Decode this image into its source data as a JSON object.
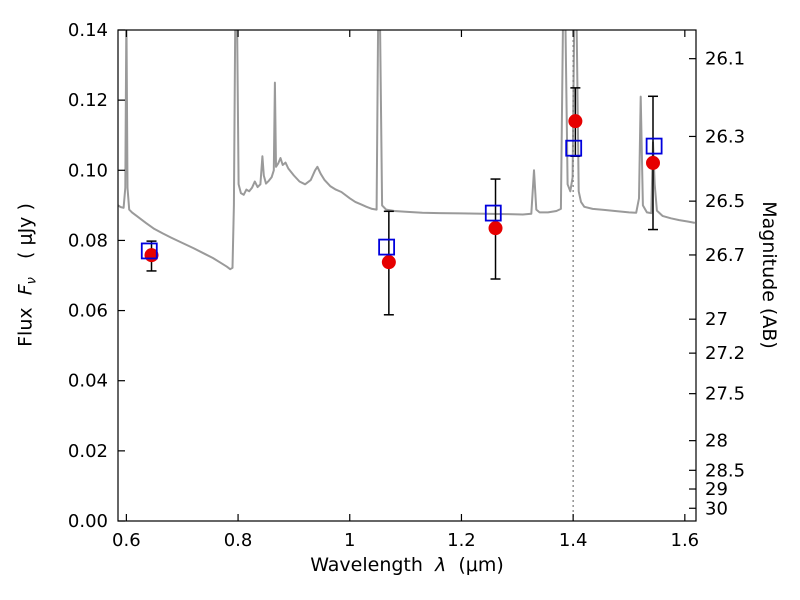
{
  "figure": {
    "xlabel": {
      "text": "Wavelength",
      "symbol": "λ",
      "unit": "(μm)"
    },
    "ylabel_left": {
      "text": "Flux",
      "symbol": "F",
      "sub": "ν",
      "unit": "( μJy )"
    },
    "ylabel_right": "Magnitude (AB)"
  },
  "chart_data": {
    "type": "line",
    "title": "",
    "xlabel": "Wavelength λ (μm)",
    "ylabel": "Flux Fν ( μJy )",
    "ylabel_secondary": "Magnitude (AB)",
    "xlim": [
      0.585,
      1.62
    ],
    "ylim": [
      0.0,
      0.14
    ],
    "grid": false,
    "legend": false,
    "xticks": {
      "values": [
        0.6,
        0.8,
        1.0,
        1.2,
        1.4,
        1.6
      ],
      "labels": [
        "0.6",
        "0.8",
        "1",
        "1.2",
        "1.4",
        "1.6"
      ]
    },
    "yticks_left": {
      "values": [
        0.0,
        0.02,
        0.04,
        0.06,
        0.08,
        0.1,
        0.12,
        0.14
      ],
      "labels": [
        "0.00",
        "0.02",
        "0.04",
        "0.06",
        "0.08",
        "0.10",
        "0.12",
        "0.14"
      ]
    },
    "yticks_right": {
      "magnitudes": [
        26.1,
        26.3,
        26.5,
        26.7,
        27,
        27.2,
        27.5,
        28,
        28.5,
        29,
        30
      ],
      "labels": [
        "26.1",
        "26.3",
        "26.5",
        "26.7",
        "27",
        "27.2",
        "27.5",
        "28",
        "28.5",
        "29",
        "30"
      ],
      "ab_zeropoint_ujy": 23.9
    },
    "vline": {
      "x": 1.4,
      "style": "dotted",
      "color": "#777777"
    },
    "series": [
      {
        "name": "model-spectrum",
        "type": "line",
        "color": "#9a9a9a",
        "x": [
          0.585,
          0.59,
          0.595,
          0.598,
          0.6,
          0.602,
          0.605,
          0.61,
          0.62,
          0.635,
          0.65,
          0.665,
          0.68,
          0.7,
          0.72,
          0.74,
          0.755,
          0.77,
          0.78,
          0.786,
          0.79,
          0.7925,
          0.795,
          0.798,
          0.801,
          0.805,
          0.81,
          0.815,
          0.82,
          0.825,
          0.83,
          0.835,
          0.84,
          0.8435,
          0.846,
          0.85,
          0.855,
          0.86,
          0.864,
          0.866,
          0.868,
          0.872,
          0.876,
          0.88,
          0.885,
          0.89,
          0.9,
          0.91,
          0.92,
          0.93,
          0.938,
          0.942,
          0.948,
          0.955,
          0.965,
          0.975,
          0.985,
          1.0,
          1.01,
          1.02,
          1.03,
          1.04,
          1.048,
          1.051,
          1.054,
          1.058,
          1.065,
          1.08,
          1.1,
          1.13,
          1.16,
          1.2,
          1.24,
          1.28,
          1.31,
          1.325,
          1.33,
          1.334,
          1.34,
          1.355,
          1.37,
          1.378,
          1.382,
          1.386,
          1.39,
          1.395,
          1.399,
          1.402,
          1.406,
          1.41,
          1.414,
          1.42,
          1.435,
          1.455,
          1.475,
          1.5,
          1.513,
          1.518,
          1.521,
          1.525,
          1.532,
          1.54,
          1.543,
          1.546,
          1.55,
          1.56,
          1.575,
          1.59,
          1.605,
          1.618
        ],
        "y": [
          0.09,
          0.0895,
          0.0893,
          0.095,
          0.145,
          0.095,
          0.0888,
          0.088,
          0.0868,
          0.085,
          0.0833,
          0.082,
          0.0808,
          0.0793,
          0.0778,
          0.0762,
          0.075,
          0.0735,
          0.0725,
          0.0718,
          0.0722,
          0.09,
          0.145,
          0.145,
          0.096,
          0.0935,
          0.093,
          0.0945,
          0.094,
          0.095,
          0.0968,
          0.0952,
          0.096,
          0.104,
          0.0985,
          0.0962,
          0.097,
          0.098,
          0.1,
          0.125,
          0.101,
          0.102,
          0.1035,
          0.1015,
          0.1022,
          0.1005,
          0.0985,
          0.0968,
          0.096,
          0.0972,
          0.1,
          0.101,
          0.099,
          0.0972,
          0.0955,
          0.0945,
          0.0938,
          0.092,
          0.091,
          0.0903,
          0.0896,
          0.089,
          0.0888,
          0.145,
          0.145,
          0.09,
          0.0888,
          0.0884,
          0.0882,
          0.0879,
          0.0878,
          0.0877,
          0.0876,
          0.0875,
          0.0874,
          0.0876,
          0.1,
          0.0888,
          0.088,
          0.088,
          0.0884,
          0.089,
          0.145,
          0.145,
          0.096,
          0.094,
          0.098,
          0.145,
          0.145,
          0.094,
          0.091,
          0.0896,
          0.089,
          0.0887,
          0.0884,
          0.088,
          0.0879,
          0.092,
          0.121,
          0.09,
          0.088,
          0.0878,
          0.108,
          0.096,
          0.0885,
          0.087,
          0.0863,
          0.0858,
          0.0854,
          0.085
        ]
      },
      {
        "name": "observed-photometry",
        "type": "scatter",
        "marker": "circle",
        "color": "#e60000",
        "err_color": "#000000",
        "x": [
          0.645,
          1.07,
          1.261,
          1.404,
          1.543
        ],
        "y": [
          0.0758,
          0.0738,
          0.0835,
          0.114,
          0.1021
        ],
        "yerr_plus": [
          0.004,
          0.0145,
          0.014,
          0.0095,
          0.019
        ],
        "yerr_minus": [
          0.0045,
          0.015,
          0.0145,
          0.01,
          0.019
        ]
      },
      {
        "name": "model-photometry",
        "type": "scatter",
        "marker": "open-square",
        "color": "#0000dd",
        "x": [
          0.641,
          1.066,
          1.257,
          1.401,
          1.545
        ],
        "y": [
          0.077,
          0.0781,
          0.0878,
          0.1063,
          0.1069
        ]
      }
    ]
  }
}
